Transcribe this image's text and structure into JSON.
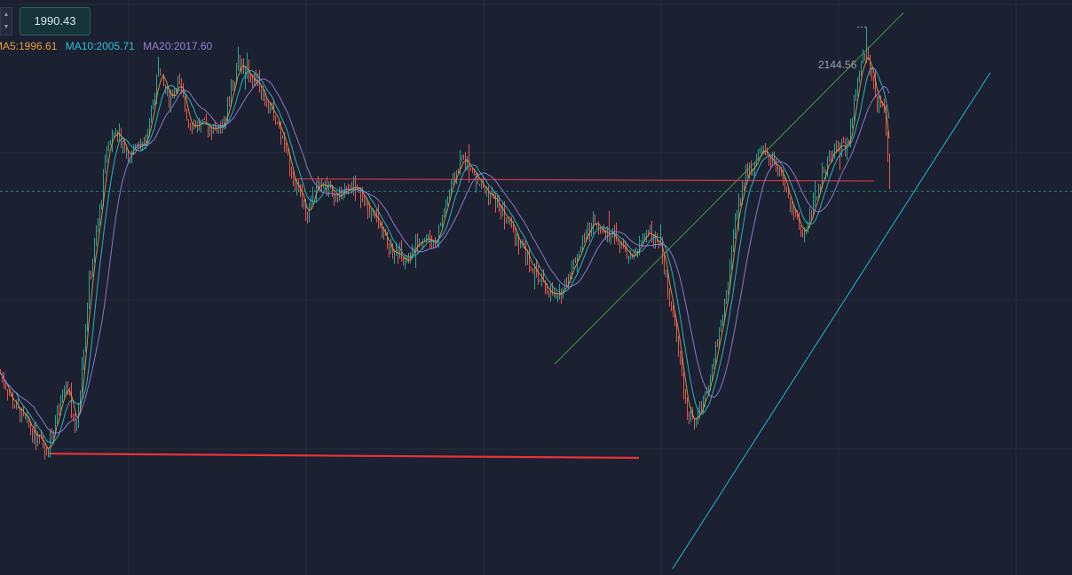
{
  "price_input": {
    "value": "1990.43",
    "up_icon": "chevron-up-icon",
    "down_icon": "chevron-down-icon"
  },
  "legend": {
    "ma5": "MA5:1996.61",
    "ma10": "MA10:2005.71",
    "ma20": "MA20:2017.60"
  },
  "peak_label": "2144.56",
  "colors": {
    "background": "#1b2130",
    "grid": "#262e3d",
    "candle_up": "#26a69a",
    "candle_down": "#ef5350",
    "ma5": "#e89a3c",
    "ma10": "#2ec0d8",
    "ma20": "#9b7fd9",
    "support_line": "#e8323c",
    "resistance_line": "#c0394a",
    "upper_channel": "#3f9a3f",
    "lower_channel": "#1fb6d8",
    "current_price_line": "#2aa198"
  },
  "chart_data": {
    "type": "candlestick",
    "title": "",
    "xlabel": "",
    "ylabel": "",
    "ylim": [
      1630,
      2170
    ],
    "current_price": 1990.43,
    "peak": 2144.56,
    "price_path": [
      [
        0,
        1820
      ],
      [
        15,
        1790
      ],
      [
        40,
        1760
      ],
      [
        53,
        1748
      ],
      [
        75,
        1812
      ],
      [
        85,
        1762
      ],
      [
        100,
        1905
      ],
      [
        112,
        1972
      ],
      [
        120,
        2033
      ],
      [
        130,
        2050
      ],
      [
        145,
        2023
      ],
      [
        165,
        2045
      ],
      [
        178,
        2101
      ],
      [
        190,
        2077
      ],
      [
        200,
        2094
      ],
      [
        212,
        2056
      ],
      [
        230,
        2051
      ],
      [
        250,
        2051
      ],
      [
        268,
        2110
      ],
      [
        290,
        2092
      ],
      [
        310,
        2061
      ],
      [
        330,
        2002
      ],
      [
        345,
        1968
      ],
      [
        360,
        2003
      ],
      [
        380,
        1985
      ],
      [
        400,
        1998
      ],
      [
        420,
        1965
      ],
      [
        440,
        1935
      ],
      [
        455,
        1928
      ],
      [
        475,
        1948
      ],
      [
        490,
        1942
      ],
      [
        505,
        1988
      ],
      [
        520,
        2023
      ],
      [
        540,
        1998
      ],
      [
        560,
        1978
      ],
      [
        580,
        1950
      ],
      [
        600,
        1918
      ],
      [
        615,
        1900
      ],
      [
        628,
        1888
      ],
      [
        645,
        1922
      ],
      [
        668,
        1963
      ],
      [
        690,
        1950
      ],
      [
        712,
        1924
      ],
      [
        730,
        1957
      ],
      [
        745,
        1935
      ],
      [
        760,
        1860
      ],
      [
        775,
        1778
      ],
      [
        785,
        1775
      ],
      [
        800,
        1820
      ],
      [
        815,
        1878
      ],
      [
        828,
        1962
      ],
      [
        840,
        2008
      ],
      [
        860,
        2026
      ],
      [
        878,
        2008
      ],
      [
        892,
        1972
      ],
      [
        906,
        1950
      ],
      [
        922,
        1997
      ],
      [
        940,
        2034
      ],
      [
        955,
        2031
      ],
      [
        965,
        2088
      ],
      [
        973,
        2120
      ],
      [
        980,
        2108
      ],
      [
        988,
        2072
      ],
      [
        996,
        2066
      ],
      [
        1002,
        1990
      ]
    ],
    "annotations": {
      "support_line": {
        "x": [
          55,
          720
        ],
        "y": [
          1744,
          1740
        ]
      },
      "resistance_line": {
        "x": [
          335,
          985
        ],
        "y": [
          2002,
          2000
        ]
      },
      "upper_channel": {
        "x": [
          625,
          1018
        ],
        "y": [
          1828,
          2158
        ]
      },
      "lower_channel": {
        "x": [
          758,
          1116
        ],
        "y": [
          1636,
          2102
        ]
      }
    }
  }
}
